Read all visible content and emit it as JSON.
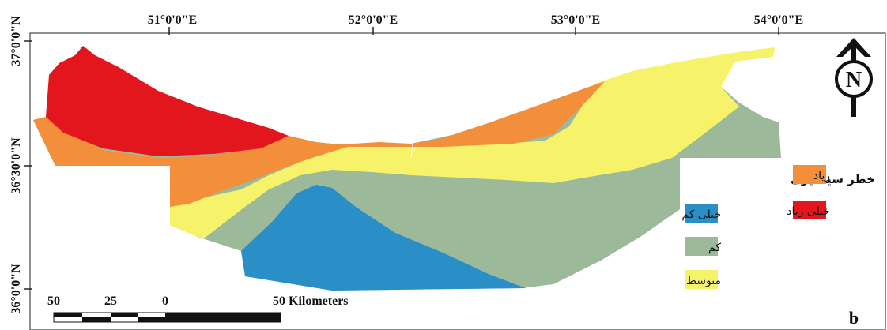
{
  "map": {
    "top_longitudes": [
      "51°0'0\"E",
      "52°0'0\"E",
      "53°0'0\"E",
      "54°0'0\"E"
    ],
    "left_latitudes": [
      "37°0'0\"N",
      "36°30'0\"N",
      "36°0'0\"N"
    ],
    "north_arrow_letter": "N",
    "panel_label": "b"
  },
  "legend": {
    "title": "خطر سیلخیزی",
    "classes": [
      {
        "label": "خیلی کم",
        "color": "#2B8FC7"
      },
      {
        "label": "کم",
        "color": "#9CB99A"
      },
      {
        "label": "متوسط",
        "color": "#F6F36A"
      },
      {
        "label": "زیاد",
        "color": "#F38E3A"
      },
      {
        "label": "خیلی زیاد",
        "color": "#E4161D"
      }
    ]
  },
  "scale_bar": {
    "ticks": [
      "50",
      "25",
      "0",
      "50 Kilometers"
    ]
  }
}
